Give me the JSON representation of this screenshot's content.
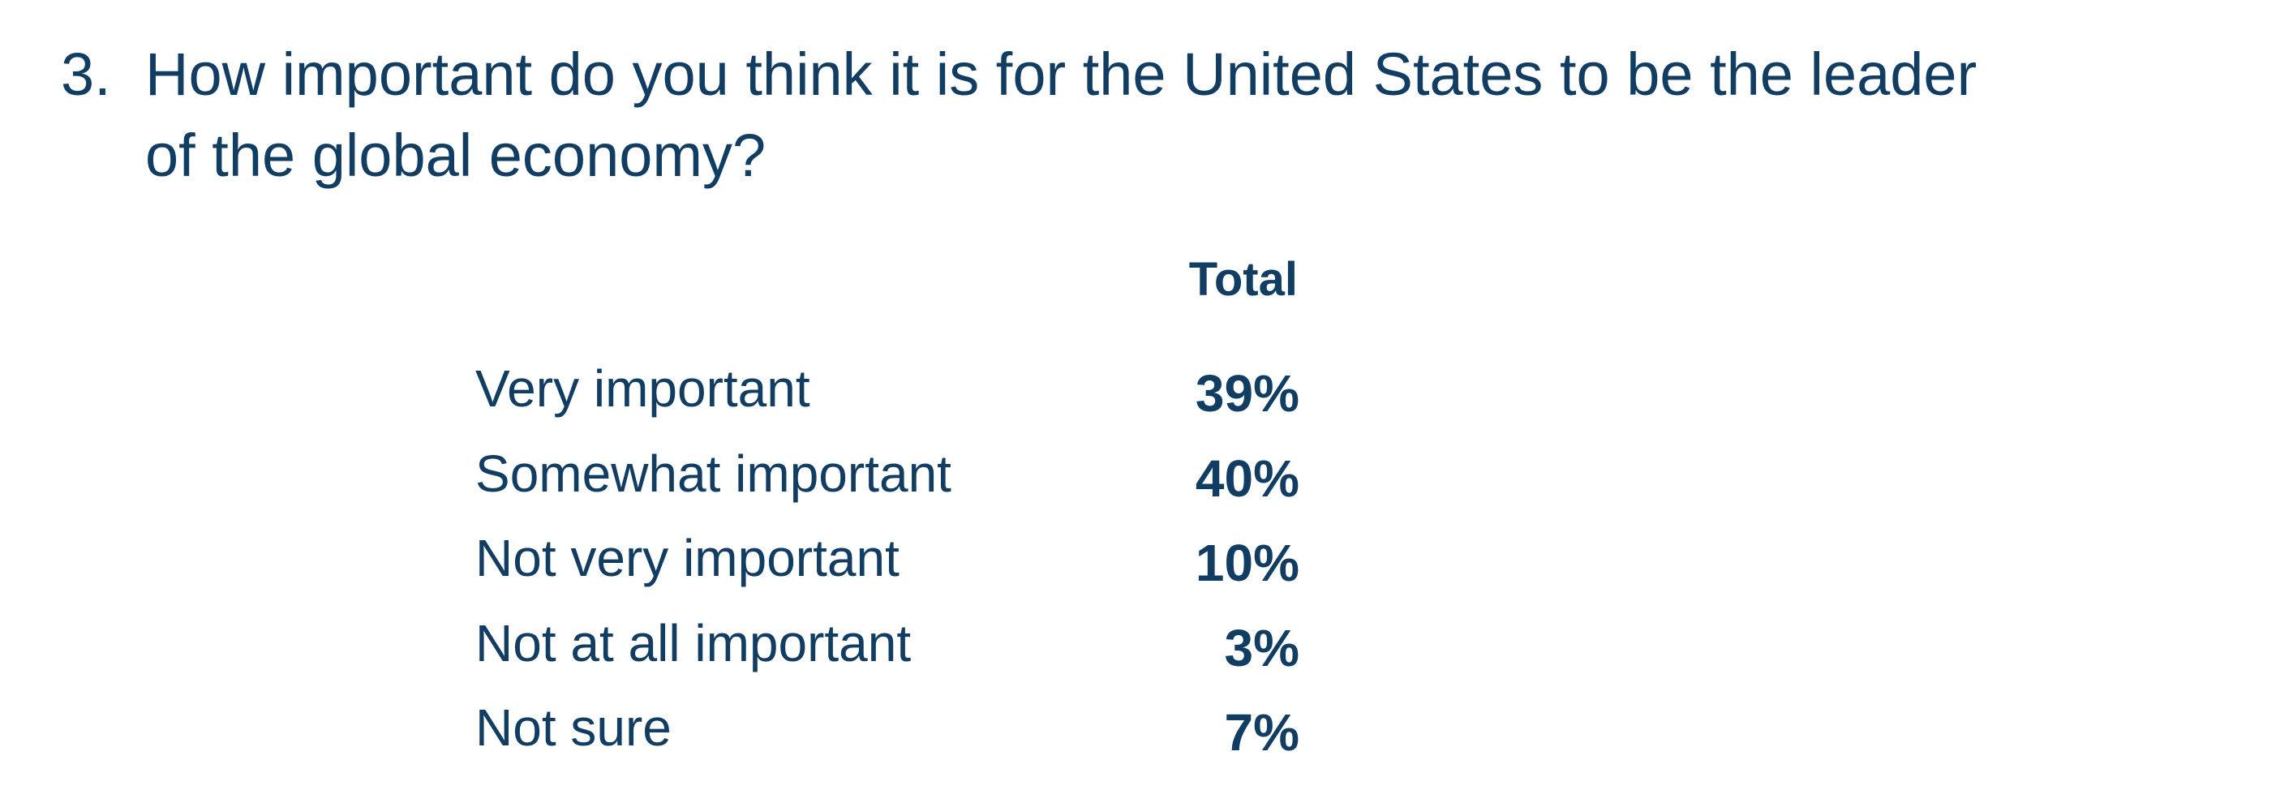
{
  "question": {
    "number": "3.",
    "text": "How important do you think it is for the United States to be the leader of the global economy?"
  },
  "table": {
    "header": "Total",
    "rows": [
      {
        "label": "Very important",
        "value": "39%"
      },
      {
        "label": "Somewhat important",
        "value": "40%"
      },
      {
        "label": "Not very important",
        "value": "10%"
      },
      {
        "label": "Not at all important",
        "value": "3%"
      },
      {
        "label": "Not sure",
        "value": "7%"
      }
    ]
  }
}
